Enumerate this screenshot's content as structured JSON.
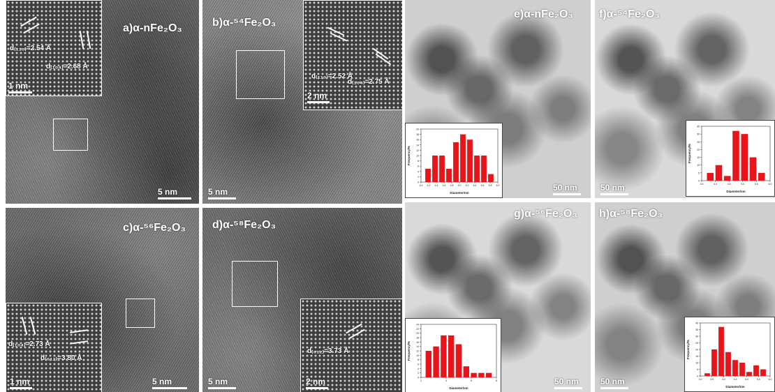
{
  "panels": {
    "a": {
      "label": "a)α-nFe₂O₃",
      "scale": "5 nm",
      "inset_scale": "1 nm",
      "d1": "d₍₁₁₀₎=2.54 Å",
      "d2": "d₍₁₀₄₎=2.68 Å"
    },
    "b": {
      "label": "b)α-⁵⁴Fe₂O₃",
      "scale": "5 nm",
      "inset_scale": "2 nm",
      "d1": "d₍₁₁₀₎=2.52 Å",
      "d2": "d₍₁₀₄₎=2.75 Å"
    },
    "c": {
      "label": "c)α-⁵⁶Fe₂O₃",
      "scale": "5 nm",
      "inset_scale": "1 nm",
      "d1": "d₍₁₀₄₎=2.73 Å",
      "d2": "d₍₀₁₂₎=3.80 Å"
    },
    "d": {
      "label": "d)α-⁵⁸Fe₂O₃",
      "scale": "5 nm",
      "inset_scale": "2 nm",
      "d1": "d₍₀₁₂₎=3.73 Å"
    },
    "e": {
      "label": "e)α-nFe₂O₃",
      "scale": "50 nm"
    },
    "f": {
      "label": "f)α-⁵⁴Fe₂O₃",
      "scale": "50 nm"
    },
    "g": {
      "label": "g)α-⁵⁶Fe₂O₃",
      "scale": "50 nm"
    },
    "h": {
      "label": "h)α-⁵⁸Fe₂O₃",
      "scale": "50 nm"
    }
  },
  "histograms": {
    "e": {
      "ylabel": "Frequency/%",
      "xlabel": "Diameter/nm",
      "xticks": [
        "4.0",
        "4.2",
        "4.4",
        "4.6",
        "4.8",
        "5.0",
        "5.2",
        "5.4",
        "5.6",
        "5.8",
        "6.0"
      ],
      "yticks": [
        "0",
        "2",
        "4",
        "6",
        "8",
        "10",
        "12",
        "14",
        "16",
        "18",
        "20"
      ],
      "ymax": 20,
      "values": [
        5,
        10,
        10,
        5,
        15,
        18,
        16,
        10,
        10,
        3
      ],
      "bar_color": "#e8141a"
    },
    "f": {
      "ylabel": "Frequency/%",
      "xlabel": "Diameter/nm",
      "xticks": [
        "3.5",
        "4.0",
        "4.5",
        "5.0",
        "5.5",
        "6.0"
      ],
      "yticks": [
        "0",
        "5",
        "10",
        "15",
        "20",
        "25",
        "30",
        "35"
      ],
      "ymax": 35,
      "values": [
        5,
        10,
        3,
        32,
        30,
        15,
        5
      ],
      "bar_color": "#e8141a"
    },
    "g": {
      "ylabel": "Frequency/%",
      "xlabel": "Diameter/nm",
      "xticks": [
        "2",
        "4",
        "6",
        "8"
      ],
      "yticks": [
        "0",
        "2",
        "4",
        "6",
        "8",
        "10",
        "12",
        "14",
        "16",
        "18",
        "20",
        "22",
        "24"
      ],
      "ymax": 24,
      "values": [
        12,
        14,
        19,
        19,
        15,
        5,
        2,
        2,
        2
      ],
      "bar_color": "#e8141a"
    },
    "h": {
      "ylabel": "Frequency/%",
      "xlabel": "Diameter/nm",
      "xticks": [
        "3.0",
        "3.5",
        "4.0",
        "4.5",
        "5.0",
        "5.5",
        "6.0"
      ],
      "yticks": [
        "0",
        "5",
        "10",
        "15",
        "20",
        "25",
        "30",
        "35",
        "40"
      ],
      "ymax": 40,
      "values": [
        2,
        20,
        37,
        18,
        12,
        10,
        3,
        8,
        5
      ],
      "bar_color": "#e8141a"
    }
  }
}
